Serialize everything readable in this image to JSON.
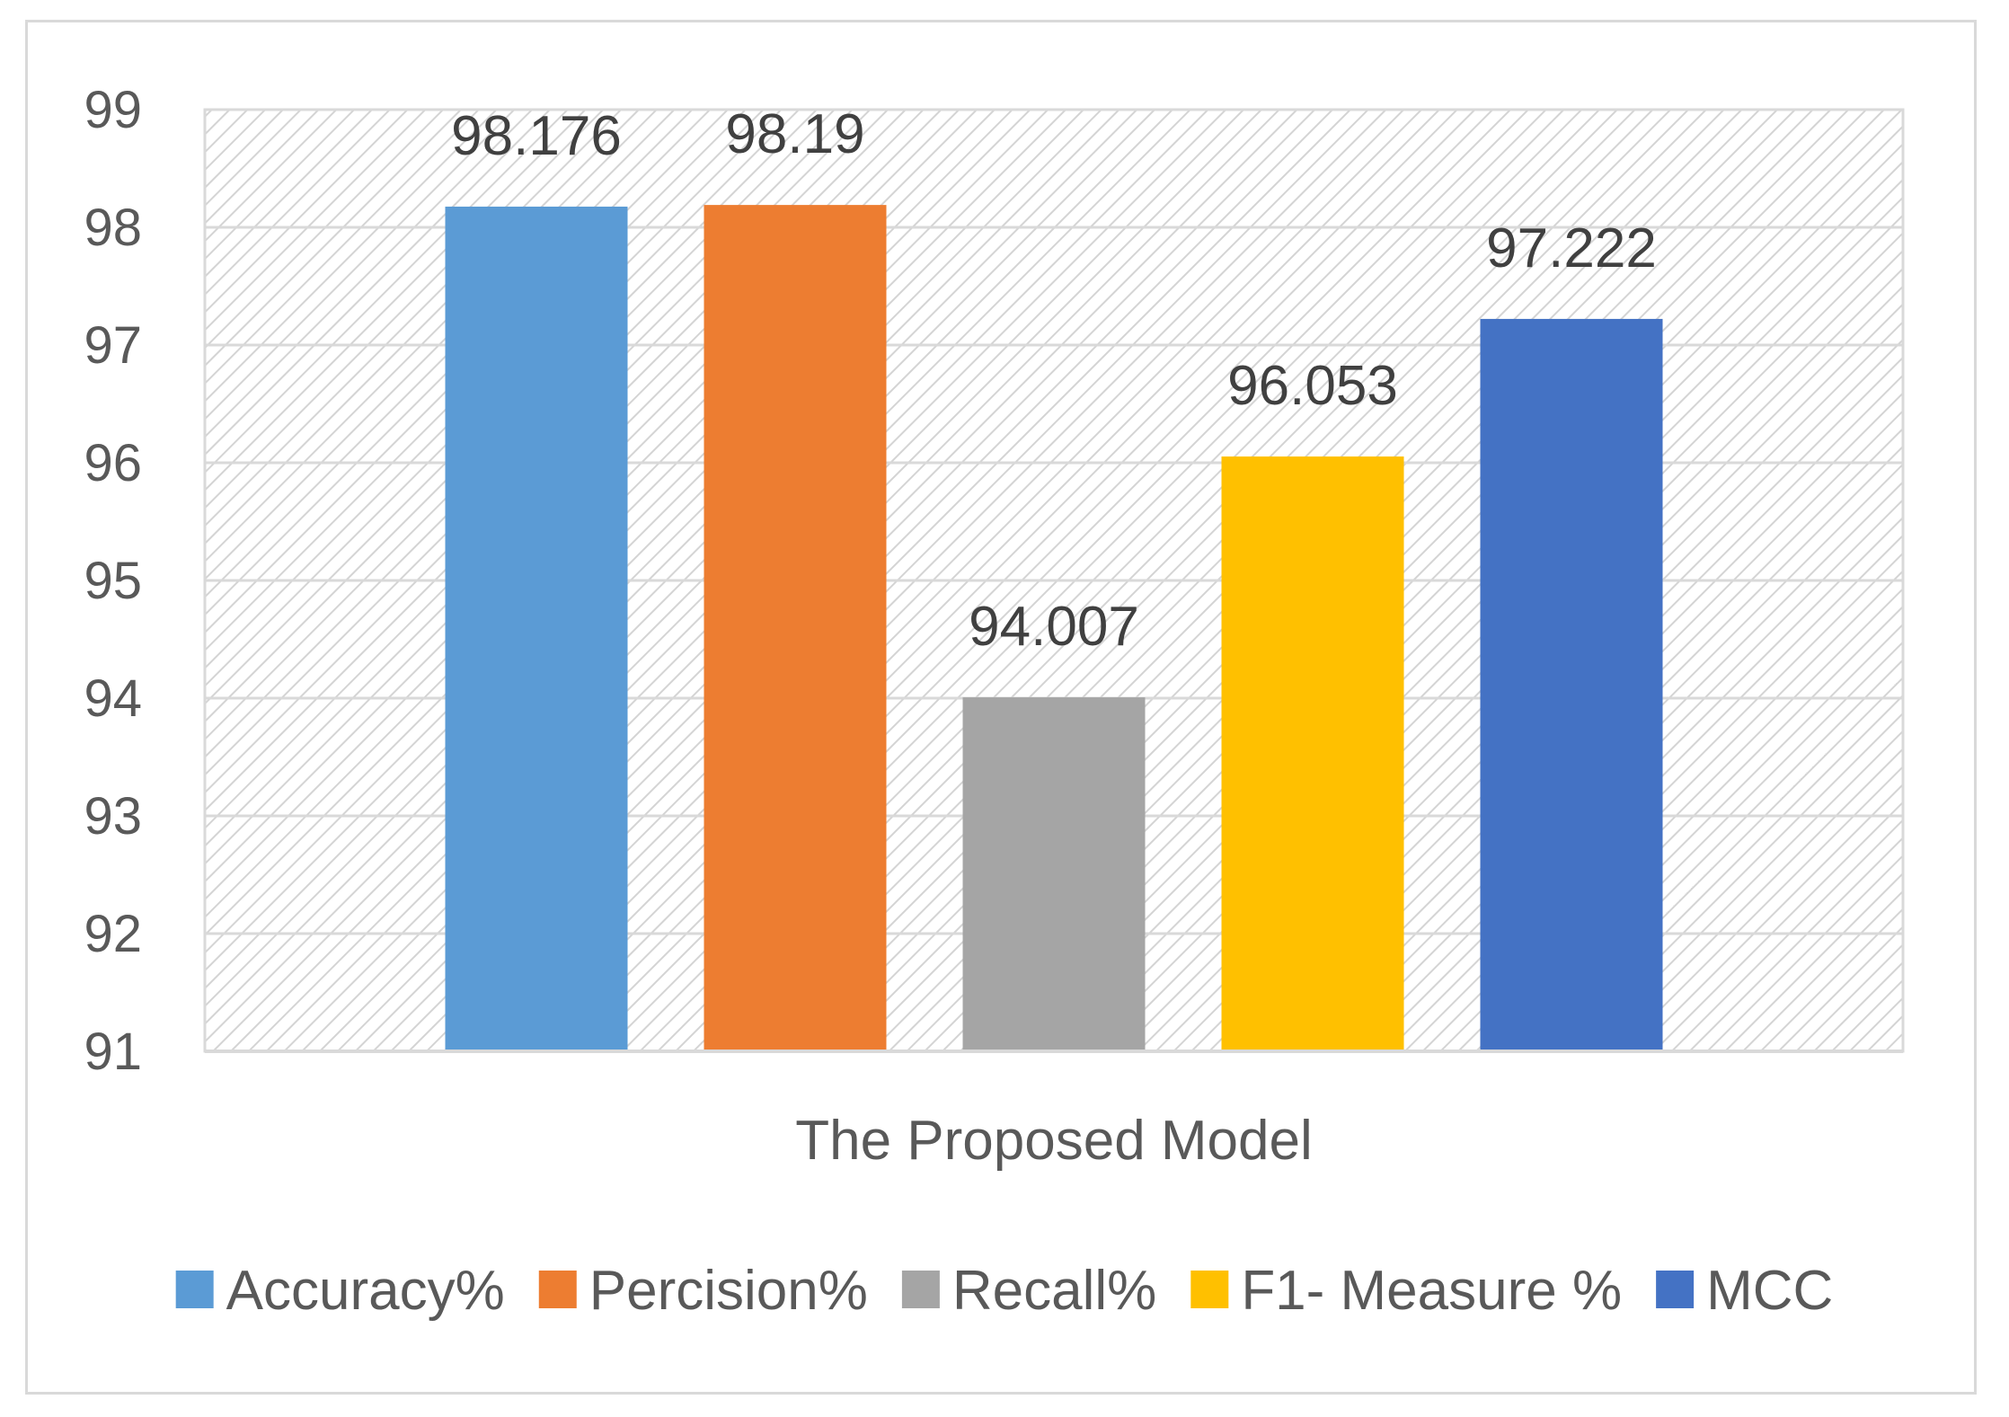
{
  "chart_data": {
    "type": "bar",
    "categories": [
      "The Proposed Model"
    ],
    "series": [
      {
        "name": "Accuracy%",
        "values": [
          98.176
        ],
        "color": "#5B9BD5"
      },
      {
        "name": "Percision%",
        "values": [
          98.19
        ],
        "color": "#ED7D31"
      },
      {
        "name": "Recall%",
        "values": [
          94.007
        ],
        "color": "#A5A5A5"
      },
      {
        "name": "F1- Measure %",
        "values": [
          96.053
        ],
        "color": "#FFC000"
      },
      {
        "name": "MCC",
        "values": [
          97.222
        ],
        "color": "#4472C4"
      }
    ],
    "data_labels": [
      "98.176",
      "98.19",
      "94.007",
      "96.053",
      "97.222"
    ],
    "ylim": [
      91,
      99
    ],
    "yticks": [
      "91",
      "92",
      "93",
      "94",
      "95",
      "96",
      "97",
      "98",
      "99"
    ],
    "grid": true,
    "legend_position": "bottom",
    "title": "",
    "xlabel": "",
    "ylabel": ""
  }
}
